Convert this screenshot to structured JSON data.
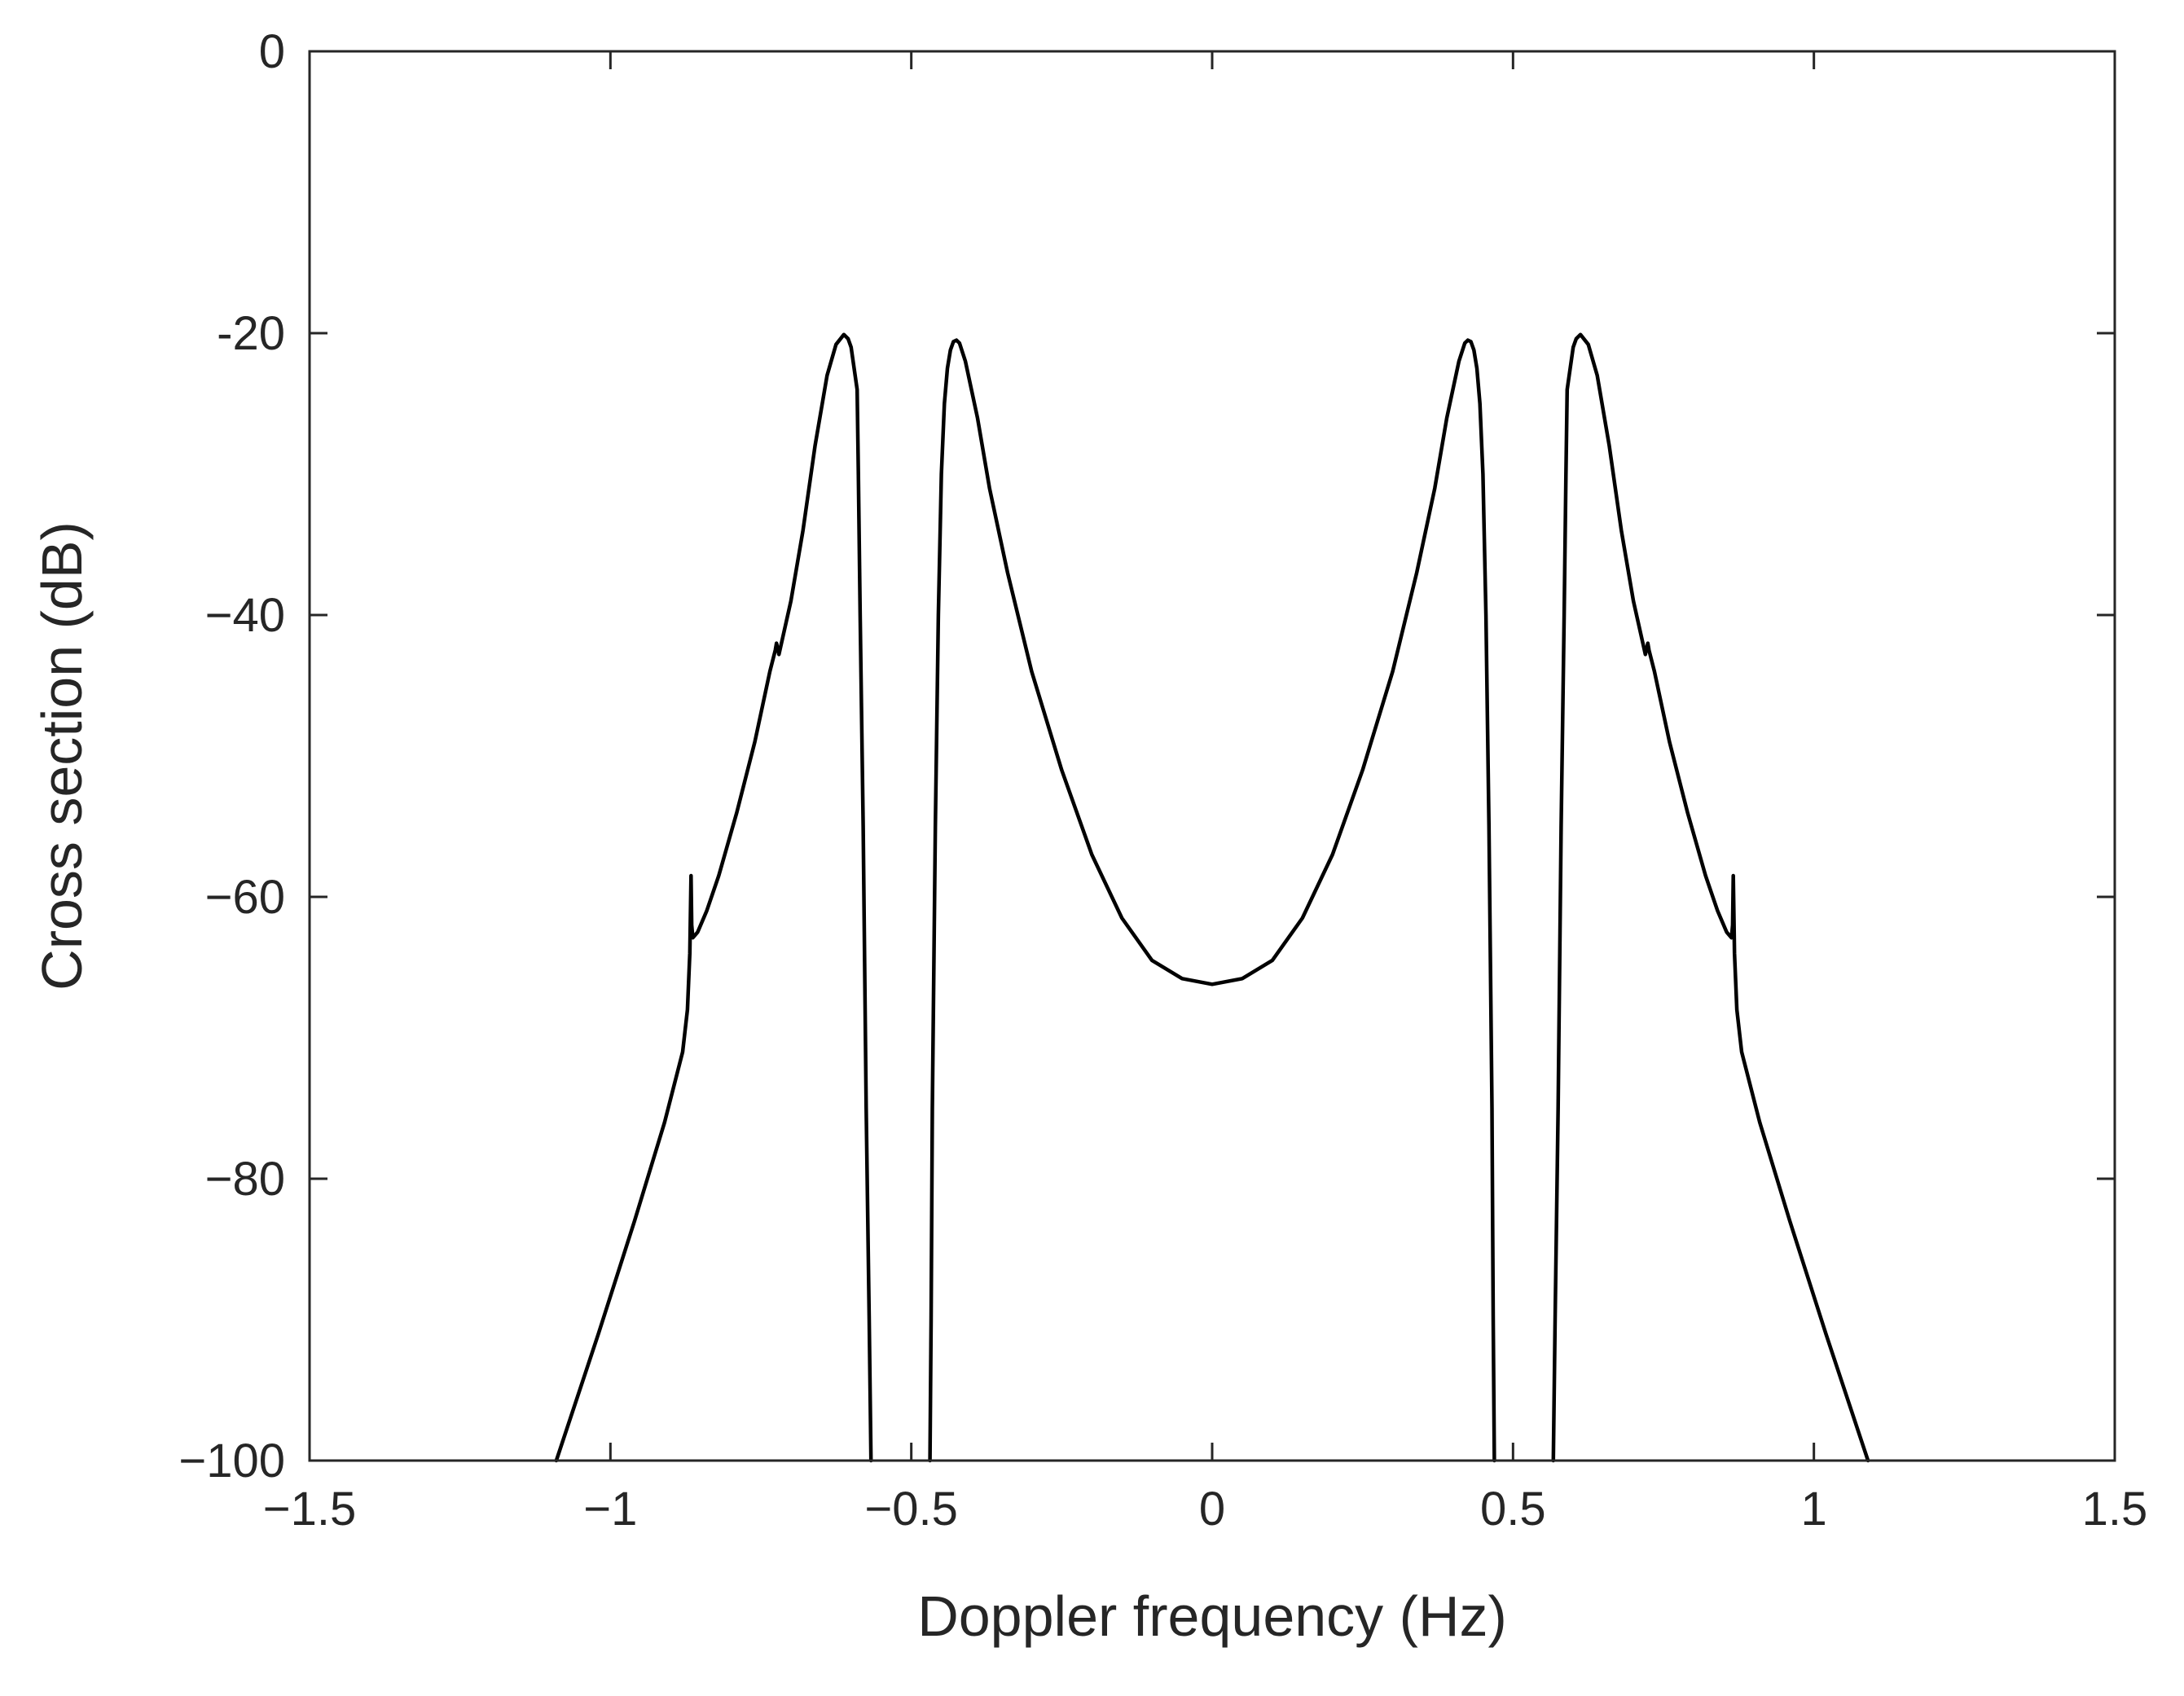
{
  "chart_data": {
    "type": "line",
    "title": "",
    "xlabel": "Doppler frequency (Hz)",
    "ylabel": "Cross section (dB)",
    "xlim": [
      -1.5,
      1.5
    ],
    "ylim": [
      -100,
      0
    ],
    "xticks": [
      -1.5,
      -1,
      -0.5,
      0,
      0.5,
      1,
      1.5
    ],
    "xtick_labels": [
      "−1.5",
      "−1",
      "−0.5",
      "0",
      "0.5",
      "1",
      "1.5"
    ],
    "yticks": [
      0,
      -20,
      -40,
      -60,
      -80,
      -100
    ],
    "ytick_labels": [
      "0",
      "-20",
      "−40",
      "−60",
      "−80",
      "−100"
    ],
    "grid": false,
    "line_color": "#000000",
    "series": [
      {
        "segments": [
          {
            "x": [
              -1.09,
              -1.02,
              -0.96,
              -0.91,
              -0.88,
              -0.872,
              -0.868,
              -0.866,
              -0.865,
              -0.863,
              -0.855,
              -0.84,
              -0.82,
              -0.79,
              -0.76,
              -0.735,
              -0.726,
              -0.724,
              -0.72,
              -0.7,
              -0.68,
              -0.66,
              -0.64,
              -0.625,
              -0.612,
              -0.605,
              -0.6,
              -0.59,
              -0.588,
              -0.585,
              -0.58,
              -0.575,
              -0.57,
              -0.567
            ],
            "y": [
              -100,
              -91,
              -83,
              -76,
              -71,
              -68,
              -64,
              -58.5,
              -62,
              -62.9,
              -62.5,
              -61,
              -58.5,
              -54,
              -49,
              -44,
              -42.5,
              -42,
              -42.8,
              -39,
              -34,
              -28,
              -23,
              -20.8,
              -20.1,
              -20.4,
              -21,
              -24,
              -30,
              -40,
              -55,
              -75,
              -90,
              -100
            ]
          },
          {
            "x": [
              -0.469,
              -0.467,
              -0.465,
              -0.46,
              -0.455,
              -0.45,
              -0.445,
              -0.44,
              -0.435,
              -0.43,
              -0.425,
              -0.42,
              -0.41,
              -0.39,
              -0.37,
              -0.34,
              -0.3,
              -0.25,
              -0.2,
              -0.15,
              -0.1,
              -0.05,
              0,
              0.05,
              0.1,
              0.15,
              0.2,
              0.25,
              0.3,
              0.34,
              0.37,
              0.39,
              0.41,
              0.42,
              0.425,
              0.43,
              0.435,
              0.44,
              0.445,
              0.45,
              0.455,
              0.46,
              0.465,
              0.467,
              0.469
            ],
            "y": [
              -100,
              -90,
              -75,
              -55,
              -40,
              -30,
              -25,
              -22.5,
              -21.2,
              -20.6,
              -20.5,
              -20.7,
              -22,
              -26,
              -31,
              -37,
              -44,
              -51,
              -57,
              -61.5,
              -64.5,
              -65.8,
              -66.2,
              -65.8,
              -64.5,
              -61.5,
              -57,
              -51,
              -44,
              -37,
              -31,
              -26,
              -22,
              -20.7,
              -20.5,
              -20.6,
              -21.2,
              -22.5,
              -25,
              -30,
              -40,
              -55,
              -75,
              -90,
              -100
            ]
          },
          {
            "x": [
              0.567,
              0.57,
              0.575,
              0.58,
              0.585,
              0.588,
              0.59,
              0.6,
              0.605,
              0.612,
              0.625,
              0.64,
              0.66,
              0.68,
              0.7,
              0.72,
              0.724,
              0.726,
              0.735,
              0.76,
              0.79,
              0.82,
              0.84,
              0.855,
              0.863,
              0.865,
              0.866,
              0.868,
              0.872,
              0.88,
              0.91,
              0.96,
              1.02,
              1.09
            ],
            "y": [
              -100,
              -90,
              -75,
              -55,
              -40,
              -30,
              -24,
              -21,
              -20.4,
              -20.1,
              -20.8,
              -23,
              -28,
              -34,
              -39,
              -42.8,
              -42,
              -42.5,
              -44,
              -49,
              -54,
              -58.5,
              -61,
              -62.5,
              -62.9,
              -62,
              -58.5,
              -64,
              -68,
              -71,
              -76,
              -83,
              -91,
              -100
            ]
          }
        ]
      }
    ]
  }
}
